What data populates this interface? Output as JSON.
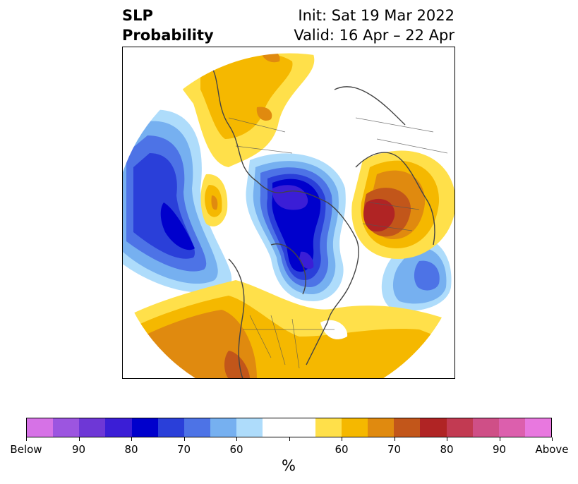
{
  "title": {
    "left_line1": "SLP",
    "left_line2": "Probability",
    "init": "Init: Sat 19 Mar 2022",
    "valid": "Valid: 16 Apr – 22 Apr"
  },
  "colorbar": {
    "unit": "%",
    "colors": [
      "#d672e6",
      "#9c55e0",
      "#6e37d6",
      "#3b1ed6",
      "#0000cc",
      "#2a3fd9",
      "#4d73e6",
      "#76b0f0",
      "#aedcfb",
      "#ffffff",
      "#ffffff",
      "#ffe04a",
      "#f5b800",
      "#e08a0f",
      "#c2561a",
      "#b02424",
      "#c23a52",
      "#cf4f87",
      "#dc5fad",
      "#e878df"
    ],
    "tick_labels": [
      "Below",
      "90",
      "80",
      "70",
      "60",
      "",
      "60",
      "70",
      "80",
      "90",
      "Above"
    ]
  }
}
